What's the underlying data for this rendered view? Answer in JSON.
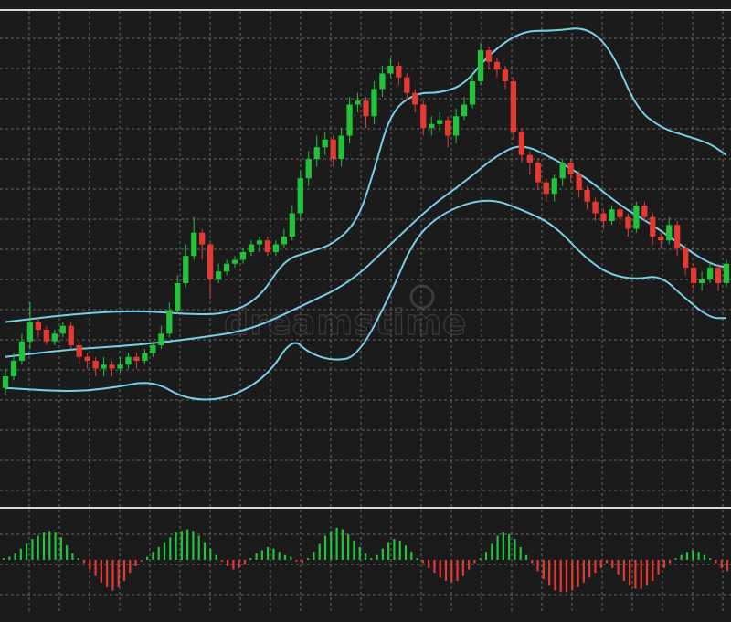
{
  "chart_data": [
    {
      "type": "candlestick",
      "bollinger_bands": true,
      "grid": true,
      "legend": "none",
      "ylim": [
        0,
        100
      ],
      "candles": [
        {
          "o": 13,
          "c": 16,
          "h": 18,
          "l": 11
        },
        {
          "o": 16,
          "c": 20,
          "h": 22,
          "l": 15
        },
        {
          "o": 20,
          "c": 25,
          "h": 27,
          "l": 19
        },
        {
          "o": 25,
          "c": 30,
          "h": 35,
          "l": 23
        },
        {
          "o": 30,
          "c": 28,
          "h": 31,
          "l": 26
        },
        {
          "o": 28,
          "c": 25,
          "h": 29,
          "l": 24
        },
        {
          "o": 25,
          "c": 27,
          "h": 28,
          "l": 24
        },
        {
          "o": 27,
          "c": 29,
          "h": 30,
          "l": 26
        },
        {
          "o": 29,
          "c": 24,
          "h": 30,
          "l": 23
        },
        {
          "o": 24,
          "c": 21,
          "h": 25,
          "l": 19
        },
        {
          "o": 21,
          "c": 20,
          "h": 22,
          "l": 18
        },
        {
          "o": 20,
          "c": 18,
          "h": 21,
          "l": 16
        },
        {
          "o": 18,
          "c": 19,
          "h": 21,
          "l": 16
        },
        {
          "o": 19,
          "c": 18,
          "h": 20,
          "l": 16
        },
        {
          "o": 18,
          "c": 19,
          "h": 21,
          "l": 17
        },
        {
          "o": 19,
          "c": 21,
          "h": 22,
          "l": 18
        },
        {
          "o": 21,
          "c": 20,
          "h": 22,
          "l": 18
        },
        {
          "o": 20,
          "c": 22,
          "h": 23,
          "l": 19
        },
        {
          "o": 22,
          "c": 24,
          "h": 25,
          "l": 21
        },
        {
          "o": 24,
          "c": 27,
          "h": 29,
          "l": 23
        },
        {
          "o": 27,
          "c": 33,
          "h": 35,
          "l": 26
        },
        {
          "o": 33,
          "c": 40,
          "h": 42,
          "l": 32
        },
        {
          "o": 40,
          "c": 47,
          "h": 50,
          "l": 39
        },
        {
          "o": 47,
          "c": 53,
          "h": 57,
          "l": 46
        },
        {
          "o": 53,
          "c": 50,
          "h": 54,
          "l": 46
        },
        {
          "o": 50,
          "c": 41,
          "h": 51,
          "l": 36
        },
        {
          "o": 41,
          "c": 43,
          "h": 45,
          "l": 40
        },
        {
          "o": 43,
          "c": 45,
          "h": 46,
          "l": 42
        },
        {
          "o": 45,
          "c": 46,
          "h": 47,
          "l": 44
        },
        {
          "o": 46,
          "c": 48,
          "h": 49,
          "l": 45
        },
        {
          "o": 48,
          "c": 50,
          "h": 51,
          "l": 47
        },
        {
          "o": 50,
          "c": 51,
          "h": 52,
          "l": 48
        },
        {
          "o": 51,
          "c": 48,
          "h": 52,
          "l": 47
        },
        {
          "o": 48,
          "c": 50,
          "h": 51,
          "l": 47
        },
        {
          "o": 50,
          "c": 52,
          "h": 54,
          "l": 49
        },
        {
          "o": 52,
          "c": 58,
          "h": 60,
          "l": 51
        },
        {
          "o": 58,
          "c": 67,
          "h": 69,
          "l": 56
        },
        {
          "o": 67,
          "c": 72,
          "h": 74,
          "l": 65
        },
        {
          "o": 72,
          "c": 75,
          "h": 78,
          "l": 70
        },
        {
          "o": 75,
          "c": 77,
          "h": 79,
          "l": 73
        },
        {
          "o": 77,
          "c": 72,
          "h": 78,
          "l": 70
        },
        {
          "o": 72,
          "c": 78,
          "h": 80,
          "l": 70
        },
        {
          "o": 78,
          "c": 86,
          "h": 88,
          "l": 76
        },
        {
          "o": 86,
          "c": 87,
          "h": 89,
          "l": 84
        },
        {
          "o": 87,
          "c": 83,
          "h": 88,
          "l": 80
        },
        {
          "o": 83,
          "c": 90,
          "h": 92,
          "l": 81
        },
        {
          "o": 90,
          "c": 94,
          "h": 96,
          "l": 88
        },
        {
          "o": 94,
          "c": 96,
          "h": 98,
          "l": 93
        },
        {
          "o": 96,
          "c": 93,
          "h": 97,
          "l": 91
        },
        {
          "o": 93,
          "c": 89,
          "h": 94,
          "l": 87
        },
        {
          "o": 89,
          "c": 86,
          "h": 90,
          "l": 84
        },
        {
          "o": 86,
          "c": 80,
          "h": 87,
          "l": 78
        },
        {
          "o": 80,
          "c": 81,
          "h": 83,
          "l": 78
        },
        {
          "o": 81,
          "c": 82,
          "h": 84,
          "l": 79
        },
        {
          "o": 82,
          "c": 78,
          "h": 83,
          "l": 75
        },
        {
          "o": 78,
          "c": 83,
          "h": 85,
          "l": 76
        },
        {
          "o": 83,
          "c": 86,
          "h": 88,
          "l": 82
        },
        {
          "o": 86,
          "c": 92,
          "h": 94,
          "l": 85
        },
        {
          "o": 92,
          "c": 100,
          "h": 102,
          "l": 91
        },
        {
          "o": 100,
          "c": 97,
          "h": 101,
          "l": 95
        },
        {
          "o": 97,
          "c": 95,
          "h": 98,
          "l": 93
        },
        {
          "o": 95,
          "c": 92,
          "h": 96,
          "l": 90
        },
        {
          "o": 92,
          "c": 79,
          "h": 93,
          "l": 77
        },
        {
          "o": 79,
          "c": 73,
          "h": 80,
          "l": 71
        },
        {
          "o": 73,
          "c": 71,
          "h": 74,
          "l": 68
        },
        {
          "o": 71,
          "c": 66,
          "h": 72,
          "l": 64
        },
        {
          "o": 66,
          "c": 63,
          "h": 67,
          "l": 61
        },
        {
          "o": 63,
          "c": 67,
          "h": 68,
          "l": 61
        },
        {
          "o": 67,
          "c": 71,
          "h": 72,
          "l": 65
        },
        {
          "o": 71,
          "c": 68,
          "h": 72,
          "l": 66
        },
        {
          "o": 68,
          "c": 64,
          "h": 69,
          "l": 62
        },
        {
          "o": 64,
          "c": 61,
          "h": 65,
          "l": 59
        },
        {
          "o": 61,
          "c": 58,
          "h": 62,
          "l": 56
        },
        {
          "o": 58,
          "c": 56,
          "h": 59,
          "l": 54
        },
        {
          "o": 56,
          "c": 59,
          "h": 60,
          "l": 55
        },
        {
          "o": 59,
          "c": 57,
          "h": 60,
          "l": 55
        },
        {
          "o": 57,
          "c": 54,
          "h": 58,
          "l": 52
        },
        {
          "o": 54,
          "c": 60,
          "h": 61,
          "l": 53
        },
        {
          "o": 60,
          "c": 57,
          "h": 61,
          "l": 56
        },
        {
          "o": 57,
          "c": 52,
          "h": 58,
          "l": 50
        },
        {
          "o": 52,
          "c": 51,
          "h": 53,
          "l": 49
        },
        {
          "o": 51,
          "c": 55,
          "h": 57,
          "l": 50
        },
        {
          "o": 55,
          "c": 49,
          "h": 56,
          "l": 47
        },
        {
          "o": 49,
          "c": 44,
          "h": 50,
          "l": 42
        },
        {
          "o": 44,
          "c": 40,
          "h": 45,
          "l": 38
        },
        {
          "o": 40,
          "c": 41,
          "h": 43,
          "l": 38
        },
        {
          "o": 41,
          "c": 44,
          "h": 45,
          "l": 40
        },
        {
          "o": 44,
          "c": 40,
          "h": 45,
          "l": 38
        },
        {
          "o": 40,
          "c": 45,
          "h": 46,
          "l": 39
        }
      ],
      "upper_band": [
        [
          0,
          30
        ],
        [
          8,
          32
        ],
        [
          16,
          33
        ],
        [
          22,
          32
        ],
        [
          27,
          32
        ],
        [
          31,
          36
        ],
        [
          34,
          46
        ],
        [
          37,
          48
        ],
        [
          40,
          50
        ],
        [
          43,
          56
        ],
        [
          45,
          69
        ],
        [
          47,
          84
        ],
        [
          50,
          89
        ],
        [
          53,
          89
        ],
        [
          56,
          91
        ],
        [
          59,
          99
        ],
        [
          63,
          105
        ],
        [
          67,
          105
        ],
        [
          71,
          106
        ],
        [
          74,
          100
        ],
        [
          77,
          85
        ],
        [
          80,
          80
        ],
        [
          83,
          78
        ],
        [
          86,
          76
        ],
        [
          88,
          73
        ]
      ],
      "middle_band": [
        [
          0,
          21
        ],
        [
          8,
          23
        ],
        [
          16,
          24
        ],
        [
          24,
          26
        ],
        [
          30,
          28
        ],
        [
          36,
          34
        ],
        [
          42,
          40
        ],
        [
          47,
          50
        ],
        [
          52,
          60
        ],
        [
          56,
          66
        ],
        [
          60,
          73
        ],
        [
          63,
          76
        ],
        [
          67,
          72
        ],
        [
          71,
          67
        ],
        [
          75,
          60
        ],
        [
          79,
          55
        ],
        [
          83,
          49
        ],
        [
          86,
          45
        ],
        [
          88,
          44
        ]
      ],
      "lower_band": [
        [
          0,
          13
        ],
        [
          8,
          12
        ],
        [
          13,
          13
        ],
        [
          18,
          15
        ],
        [
          22,
          10
        ],
        [
          27,
          10
        ],
        [
          32,
          16
        ],
        [
          35,
          26
        ],
        [
          37,
          22
        ],
        [
          40,
          20
        ],
        [
          43,
          21
        ],
        [
          47,
          37
        ],
        [
          50,
          52
        ],
        [
          54,
          59
        ],
        [
          59,
          62
        ],
        [
          63,
          59
        ],
        [
          67,
          55
        ],
        [
          71,
          46
        ],
        [
          74,
          42
        ],
        [
          77,
          41
        ],
        [
          80,
          42
        ],
        [
          83,
          36
        ],
        [
          86,
          31
        ],
        [
          88,
          31
        ]
      ],
      "colors": {
        "up": "#22c33a",
        "down": "#e53a33",
        "band": "#78cfe8",
        "background": "#1b1b1b",
        "grid": "#6a6a6a"
      }
    },
    {
      "type": "bar",
      "histogram": true,
      "ylim": [
        -50,
        50
      ],
      "values": [
        2,
        4,
        8,
        14,
        20,
        26,
        30,
        34,
        36,
        34,
        28,
        18,
        8,
        2,
        -4,
        -12,
        -20,
        -28,
        -34,
        -38,
        -34,
        -26,
        -16,
        -8,
        -2,
        4,
        10,
        16,
        22,
        28,
        34,
        36,
        38,
        36,
        30,
        22,
        14,
        6,
        -2,
        -8,
        -12,
        -10,
        -6,
        2,
        8,
        12,
        16,
        14,
        10,
        6,
        4,
        -2,
        -4,
        2,
        10,
        20,
        30,
        36,
        40,
        38,
        32,
        24,
        16,
        8,
        2,
        6,
        14,
        22,
        26,
        24,
        18,
        10,
        2,
        -4,
        -10,
        -16,
        -22,
        -26,
        -28,
        -26,
        -20,
        -12,
        -4,
        2,
        10,
        20,
        30,
        34,
        32,
        26,
        16,
        6,
        -4,
        -14,
        -24,
        -32,
        -38,
        -40,
        -40,
        -38,
        -34,
        -28,
        -22,
        -16,
        -10,
        -4,
        -10,
        -18,
        -26,
        -32,
        -36,
        -36,
        -32,
        -26,
        -18,
        -10,
        -4,
        2,
        6,
        10,
        12,
        10,
        6,
        2,
        -4,
        -10,
        -14
      ],
      "colors": {
        "positive": "#22c33a",
        "negative": "#e53a33"
      }
    }
  ],
  "watermark": {
    "text": "dreamstime"
  }
}
